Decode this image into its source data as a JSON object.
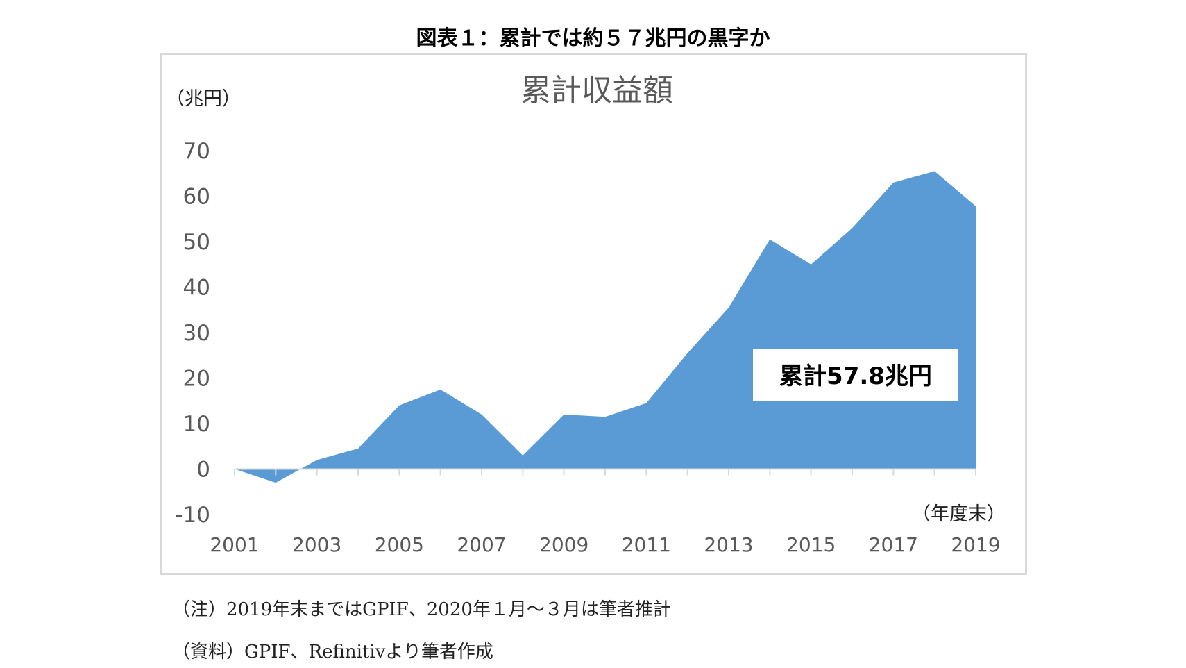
{
  "figure_title": "図表１：累計では約５７兆円の黒字か",
  "notes": [
    "（注）2019年末まではGPIF、2020年１月～３月は筆者推計",
    "（資料）GPIF、Refinitivより筆者作成"
  ],
  "chart_data": {
    "type": "area",
    "title": "累計収益額",
    "ylabel": "（兆円）",
    "xlabel": "（年度末）",
    "ylim": [
      -10,
      70
    ],
    "yticks": [
      -10,
      0,
      10,
      20,
      30,
      40,
      50,
      60,
      70
    ],
    "x": [
      2001,
      2002,
      2003,
      2004,
      2005,
      2006,
      2007,
      2008,
      2009,
      2010,
      2011,
      2012,
      2013,
      2014,
      2015,
      2016,
      2017,
      2018,
      2019
    ],
    "xtick_labels": [
      "2001",
      "2003",
      "2005",
      "2007",
      "2009",
      "2011",
      "2013",
      "2015",
      "2017",
      "2019"
    ],
    "values": [
      0,
      -3,
      2,
      4.5,
      14,
      17.5,
      12,
      3,
      12,
      11.5,
      14.5,
      25.5,
      35.5,
      50.5,
      45,
      53,
      63,
      65.5,
      57.8
    ],
    "fill_color": "#5b9bd5",
    "grid": false,
    "annotation": "累計57.8兆円"
  }
}
